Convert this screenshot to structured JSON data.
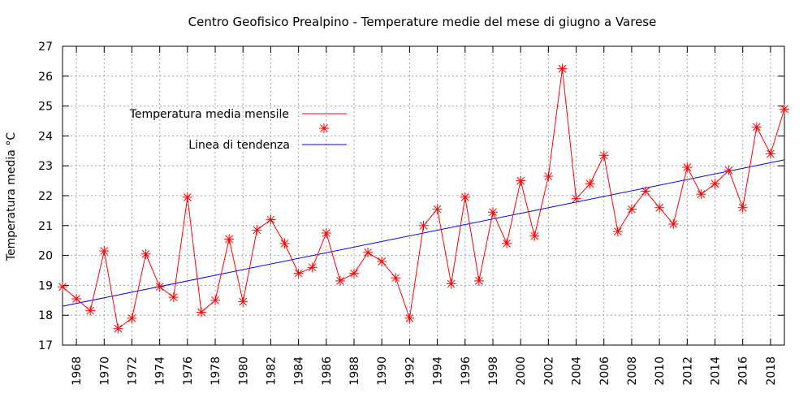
{
  "chart_data": {
    "type": "line",
    "title": "Centro Geofisico Prealpino - Temperature medie del mese di giugno a Varese",
    "xlabel": "",
    "ylabel": "Temperatura media °C",
    "xlim": [
      1967,
      2019
    ],
    "ylim": [
      17,
      27
    ],
    "yticks": [
      17,
      18,
      19,
      20,
      21,
      22,
      23,
      24,
      25,
      26,
      27
    ],
    "xticks": [
      "1968",
      "1970",
      "1972",
      "1974",
      "1976",
      "1978",
      "1980",
      "1982",
      "1984",
      "1986",
      "1988",
      "1990",
      "1992",
      "1994",
      "1996",
      "1998",
      "2000",
      "2002",
      "2004",
      "2006",
      "2008",
      "2010",
      "2012",
      "2014",
      "2016",
      "2018"
    ],
    "grid": true,
    "legend_position": "upper-left",
    "series": [
      {
        "name": "Temperatura media mensile",
        "color": "#ff0000",
        "marker": "asterisk",
        "x": [
          1967,
          1968,
          1969,
          1970,
          1971,
          1972,
          1973,
          1974,
          1975,
          1976,
          1977,
          1978,
          1979,
          1980,
          1981,
          1982,
          1983,
          1984,
          1985,
          1986,
          1987,
          1988,
          1989,
          1990,
          1991,
          1992,
          1993,
          1994,
          1995,
          1996,
          1997,
          1998,
          1999,
          2000,
          2001,
          2002,
          2003,
          2004,
          2005,
          2006,
          2007,
          2008,
          2009,
          2010,
          2011,
          2012,
          2013,
          2014,
          2015,
          2016,
          2017,
          2018,
          2019
        ],
        "y": [
          18.95,
          18.55,
          18.15,
          20.15,
          17.55,
          17.9,
          20.05,
          18.95,
          18.6,
          21.95,
          18.1,
          18.5,
          20.55,
          18.45,
          20.85,
          21.2,
          20.4,
          19.4,
          19.6,
          20.75,
          19.15,
          19.4,
          20.1,
          19.8,
          19.25,
          17.9,
          21.0,
          21.55,
          19.05,
          21.95,
          19.15,
          21.45,
          20.4,
          22.5,
          20.65,
          22.65,
          26.25,
          21.9,
          22.4,
          23.35,
          20.8,
          21.55,
          22.15,
          21.6,
          21.05,
          22.95,
          22.05,
          22.4,
          22.85,
          21.6,
          24.3,
          23.4,
          24.9
        ]
      },
      {
        "name": "Linea di tendenza",
        "color": "#0000ff",
        "x": [
          1967,
          2019
        ],
        "y": [
          18.3,
          23.2
        ]
      }
    ]
  }
}
